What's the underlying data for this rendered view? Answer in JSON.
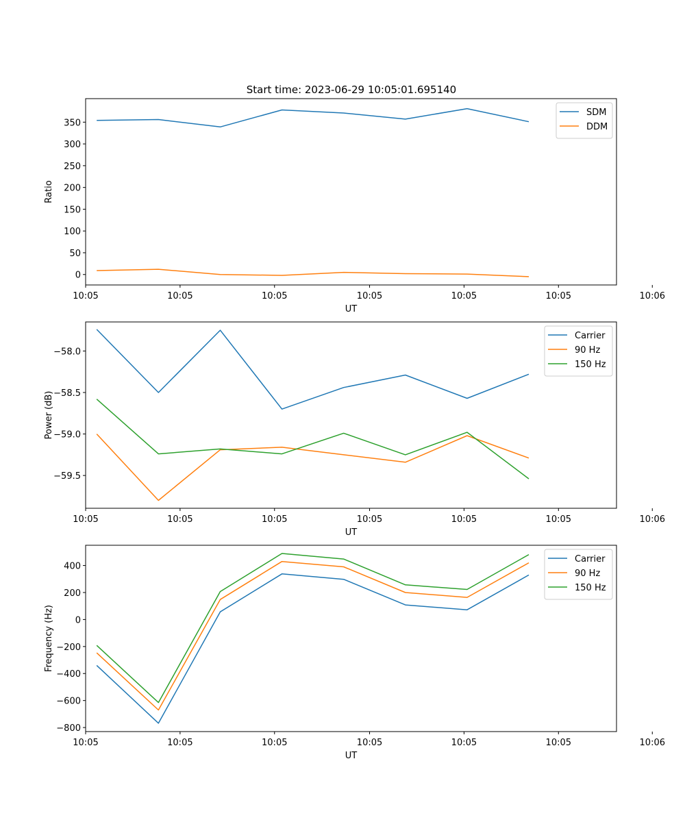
{
  "figure": {
    "title": "Start time: 2023-06-29 10:05:01.695140"
  },
  "colors": {
    "series1": "#1f77b4",
    "series2": "#ff7f0e",
    "series3": "#2ca02c",
    "axis": "#000000",
    "legend_border": "#cccccc"
  },
  "chart_data": [
    {
      "type": "line",
      "title": "Start time: 2023-06-29 10:05:01.695140",
      "xlabel": "UT",
      "ylabel": "Ratio",
      "x": [
        1,
        2,
        3,
        4,
        5,
        6,
        7,
        8
      ],
      "xlim": [
        0.82,
        9.42
      ],
      "x_ticks": [
        0.82,
        2.35,
        3.88,
        5.42,
        6.95,
        8.48,
        10.0
      ],
      "x_tick_labels": [
        "10:05",
        "10:05",
        "10:05",
        "10:05",
        "10:05",
        "10:05",
        "10:06"
      ],
      "ylim": [
        -24,
        404
      ],
      "y_ticks": [
        0,
        50,
        100,
        150,
        200,
        250,
        300,
        350
      ],
      "y_tick_labels": [
        "0",
        "50",
        "100",
        "150",
        "200",
        "250",
        "300",
        "350"
      ],
      "legend": "top-right",
      "series": [
        {
          "name": "SDM",
          "color": "#1f77b4",
          "values": [
            354,
            356,
            339,
            378,
            371,
            357,
            381,
            351
          ]
        },
        {
          "name": "DDM",
          "color": "#ff7f0e",
          "values": [
            9,
            12,
            0,
            -2,
            5,
            2,
            1,
            -5
          ]
        }
      ]
    },
    {
      "type": "line",
      "title": "",
      "xlabel": "UT",
      "ylabel": "Power (dB)",
      "x": [
        1,
        2,
        3,
        4,
        5,
        6,
        7,
        8
      ],
      "xlim": [
        0.82,
        9.42
      ],
      "x_ticks": [
        0.82,
        2.35,
        3.88,
        5.42,
        6.95,
        8.48,
        10.0
      ],
      "x_tick_labels": [
        "10:05",
        "10:05",
        "10:05",
        "10:05",
        "10:05",
        "10:05",
        "10:06"
      ],
      "ylim": [
        -59.895,
        -57.65
      ],
      "y_ticks": [
        -59.5,
        -59.0,
        -58.5,
        -58.0
      ],
      "y_tick_labels": [
        "−59.5",
        "−59.0",
        "−58.5",
        "−58.0"
      ],
      "legend": "top-right",
      "series": [
        {
          "name": "Carrier",
          "color": "#1f77b4",
          "values": [
            -57.74,
            -58.5,
            -57.75,
            -58.7,
            -58.44,
            -58.29,
            -58.57,
            -58.28
          ]
        },
        {
          "name": "90 Hz",
          "color": "#ff7f0e",
          "values": [
            -59.0,
            -59.8,
            -59.19,
            -59.16,
            -59.25,
            -59.34,
            -59.02,
            -59.29
          ]
        },
        {
          "name": "150 Hz",
          "color": "#2ca02c",
          "values": [
            -58.58,
            -59.24,
            -59.18,
            -59.24,
            -58.99,
            -59.25,
            -58.98,
            -59.54
          ]
        }
      ]
    },
    {
      "type": "line",
      "title": "",
      "xlabel": "UT",
      "ylabel": "Frequency (Hz)",
      "x": [
        1,
        2,
        3,
        4,
        5,
        6,
        7,
        8
      ],
      "xlim": [
        0.82,
        9.42
      ],
      "x_ticks": [
        0.82,
        2.35,
        3.88,
        5.42,
        6.95,
        8.48,
        10.0
      ],
      "x_tick_labels": [
        "10:05",
        "10:05",
        "10:05",
        "10:05",
        "10:05",
        "10:05",
        "10:06"
      ],
      "ylim": [
        -830,
        550
      ],
      "y_ticks": [
        -800,
        -600,
        -400,
        -200,
        0,
        200,
        400
      ],
      "y_tick_labels": [
        "−800",
        "−600",
        "−400",
        "−200",
        "0",
        "200",
        "400"
      ],
      "legend": "top-right",
      "series": [
        {
          "name": "Carrier",
          "color": "#1f77b4",
          "values": [
            -340,
            -768,
            57,
            338,
            298,
            108,
            72,
            330
          ]
        },
        {
          "name": "90 Hz",
          "color": "#ff7f0e",
          "values": [
            -247,
            -670,
            148,
            430,
            390,
            200,
            164,
            420
          ]
        },
        {
          "name": "150 Hz",
          "color": "#2ca02c",
          "values": [
            -192,
            -615,
            207,
            489,
            448,
            257,
            223,
            481
          ]
        }
      ]
    }
  ]
}
